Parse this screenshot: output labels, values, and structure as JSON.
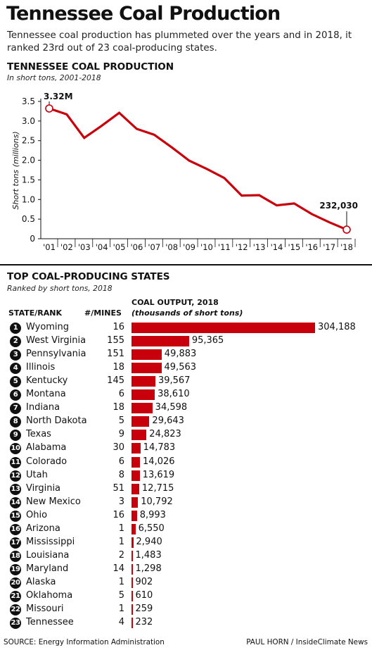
{
  "title": "Tennessee Coal Production",
  "intro": "Tennessee coal production has plummeted over the years and in 2018, it ranked 23rd out of 23 coal-producing states.",
  "colors": {
    "accent": "#c8000c",
    "text": "#111111"
  },
  "chart_data": [
    {
      "type": "line",
      "title": "TENNESSEE COAL PRODUCTION",
      "subtitle": "In short tons, 2001-2018",
      "ylabel": "Short tons (millions)",
      "xlabel": "",
      "ylim": [
        0,
        3.5
      ],
      "yticks": [
        "0",
        "0.5",
        "1.0",
        "1.5",
        "2.0",
        "2.5",
        "3.0",
        "3.5"
      ],
      "grid": false,
      "x": [
        "'01",
        "'02",
        "'03",
        "'04",
        "'05",
        "'06",
        "'07",
        "'08",
        "'09",
        "'10",
        "'11",
        "'12",
        "'13",
        "'14",
        "'15",
        "'16",
        "'17",
        "'18"
      ],
      "series": [
        {
          "values": [
            3.32,
            3.17,
            2.57,
            2.88,
            3.21,
            2.8,
            2.65,
            2.33,
            1.99,
            1.78,
            1.55,
            1.1,
            1.11,
            0.85,
            0.9,
            0.63,
            0.42,
            0.232
          ]
        }
      ],
      "annotations": [
        {
          "label": "3.32M",
          "x": "'01"
        },
        {
          "label": "232,030",
          "x": "'18"
        }
      ],
      "line_color": "#c8000c"
    },
    {
      "type": "bar",
      "title": "TOP COAL-PRODUCING STATES",
      "subtitle": "Ranked by short tons, 2018",
      "headers": {
        "state": "STATE/RANK",
        "mines": "#/MINES",
        "output": "COAL OUTPUT, 2018",
        "output_unit": "(thousands of short tons)"
      },
      "max_value": 304188,
      "rows": [
        {
          "rank": "1",
          "state": "Wyoming",
          "mines": "16",
          "value": 304188,
          "label": "304,188"
        },
        {
          "rank": "2",
          "state": "West Virginia",
          "mines": "155",
          "value": 95365,
          "label": "95,365"
        },
        {
          "rank": "3",
          "state": "Pennsylvania",
          "mines": "151",
          "value": 49883,
          "label": "49,883"
        },
        {
          "rank": "4",
          "state": "Illinois",
          "mines": "18",
          "value": 49563,
          "label": "49,563"
        },
        {
          "rank": "5",
          "state": "Kentucky",
          "mines": "145",
          "value": 39567,
          "label": "39,567"
        },
        {
          "rank": "6",
          "state": "Montana",
          "mines": "6",
          "value": 38610,
          "label": "38,610"
        },
        {
          "rank": "7",
          "state": "Indiana",
          "mines": "18",
          "value": 34598,
          "label": "34,598"
        },
        {
          "rank": "8",
          "state": "North Dakota",
          "mines": "5",
          "value": 29643,
          "label": "29,643"
        },
        {
          "rank": "9",
          "state": "Texas",
          "mines": "9",
          "value": 24823,
          "label": "24,823"
        },
        {
          "rank": "10",
          "state": "Alabama",
          "mines": "30",
          "value": 14783,
          "label": "14,783"
        },
        {
          "rank": "11",
          "state": "Colorado",
          "mines": "6",
          "value": 14026,
          "label": "14,026"
        },
        {
          "rank": "12",
          "state": "Utah",
          "mines": "8",
          "value": 13619,
          "label": "13,619"
        },
        {
          "rank": "13",
          "state": "Virginia",
          "mines": "51",
          "value": 12715,
          "label": "12,715"
        },
        {
          "rank": "14",
          "state": "New Mexico",
          "mines": "3",
          "value": 10792,
          "label": "10,792"
        },
        {
          "rank": "15",
          "state": "Ohio",
          "mines": "16",
          "value": 8993,
          "label": "8,993"
        },
        {
          "rank": "16",
          "state": "Arizona",
          "mines": "1",
          "value": 6550,
          "label": "6,550"
        },
        {
          "rank": "17",
          "state": "Mississippi",
          "mines": "1",
          "value": 2940,
          "label": "2,940"
        },
        {
          "rank": "18",
          "state": "Louisiana",
          "mines": "2",
          "value": 1483,
          "label": "1,483"
        },
        {
          "rank": "19",
          "state": "Maryland",
          "mines": "14",
          "value": 1298,
          "label": "1,298"
        },
        {
          "rank": "20",
          "state": "Alaska",
          "mines": "1",
          "value": 902,
          "label": "902"
        },
        {
          "rank": "21",
          "state": "Oklahoma",
          "mines": "5",
          "value": 610,
          "label": "610"
        },
        {
          "rank": "22",
          "state": "Missouri",
          "mines": "1",
          "value": 259,
          "label": "259"
        },
        {
          "rank": "23",
          "state": "Tennessee",
          "mines": "4",
          "value": 232,
          "label": "232"
        }
      ]
    }
  ],
  "footer": {
    "source": "SOURCE: Energy Information Administration",
    "credit": "PAUL HORN / InsideClimate News"
  }
}
